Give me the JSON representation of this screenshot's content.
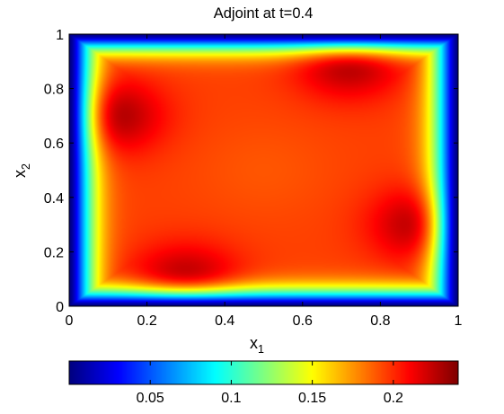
{
  "chart_data": {
    "type": "heatmap",
    "title": "Adjoint at t=0.4",
    "xlabel": {
      "base": "x",
      "subscript": "1"
    },
    "ylabel": {
      "base": "x",
      "subscript": "2"
    },
    "xlim": [
      0,
      1
    ],
    "ylim": [
      0,
      1
    ],
    "x_ticks": [
      "0",
      "0.2",
      "0.4",
      "0.6",
      "0.8",
      "1"
    ],
    "y_ticks": [
      "0",
      "0.2",
      "0.4",
      "0.6",
      "0.8",
      "1"
    ],
    "colormap": "jet",
    "colorbar": {
      "placement": "bottom",
      "range": [
        0,
        0.24
      ],
      "ticks": [
        "0.05",
        "0.1",
        "0.15",
        "0.2"
      ],
      "tick_values": [
        0.05,
        0.1,
        0.15,
        0.2
      ]
    },
    "field": {
      "description_of_structure": "value near 0 at the boundary, rising to a plateau of about 0.2 in the interior, with four darker maxima arranged in a rotating pattern",
      "boundary_value": 0.0,
      "plateau_value": 0.195,
      "center_value": 0.19,
      "peaks": [
        {
          "x": 0.1,
          "y": 0.7,
          "value": 0.235
        },
        {
          "x": 0.72,
          "y": 0.91,
          "value": 0.235
        },
        {
          "x": 0.92,
          "y": 0.3,
          "value": 0.235
        },
        {
          "x": 0.3,
          "y": 0.08,
          "value": 0.235
        }
      ]
    }
  }
}
